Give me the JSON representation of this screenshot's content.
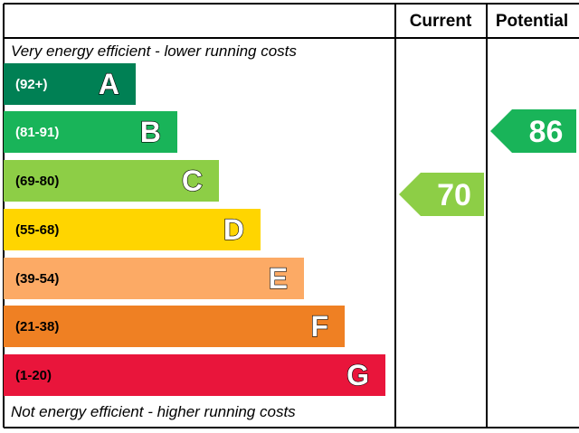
{
  "chart_data": {
    "type": "bar",
    "header": {
      "current": "Current",
      "potential": "Potential"
    },
    "top_note": "Very energy efficient - lower running costs",
    "bottom_note": "Not energy efficient - higher running costs",
    "bands": [
      {
        "letter": "A",
        "range": "(92+)",
        "color": "#008054",
        "text_color": "#ffffff"
      },
      {
        "letter": "B",
        "range": "(81-91)",
        "color": "#19b459",
        "text_color": "#ffffff"
      },
      {
        "letter": "C",
        "range": "(69-80)",
        "color": "#8dce46",
        "text_color": "#000000"
      },
      {
        "letter": "D",
        "range": "(55-68)",
        "color": "#ffd500",
        "text_color": "#000000"
      },
      {
        "letter": "E",
        "range": "(39-54)",
        "color": "#fcaa65",
        "text_color": "#000000"
      },
      {
        "letter": "F",
        "range": "(21-38)",
        "color": "#ef8023",
        "text_color": "#000000"
      },
      {
        "letter": "G",
        "range": "(1-20)",
        "color": "#e9153b",
        "text_color": "#000000"
      }
    ],
    "current": {
      "value": 70,
      "band": "C",
      "color": "#8dce46"
    },
    "potential": {
      "value": 86,
      "band": "B",
      "color": "#19b459"
    }
  }
}
